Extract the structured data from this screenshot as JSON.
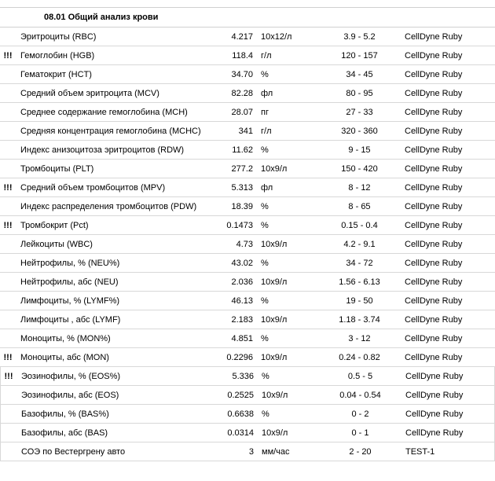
{
  "section": {
    "title": "08.01 Общий анализ крови"
  },
  "colors": {
    "border": "#d8d8d8",
    "text": "#000000",
    "bg": "#ffffff"
  },
  "typography": {
    "fontFamily": "Arial",
    "fontSize": 11
  },
  "rows": [
    {
      "flag": "",
      "name": "Эритроциты (RBC)",
      "value": "4.217",
      "unit": "10x12/л",
      "range": "3.9 - 5.2",
      "device": "CellDyne Ruby",
      "outer": false
    },
    {
      "flag": "!!!",
      "name": "Гемоглобин (HGB)",
      "value": "118.4",
      "unit": "г/л",
      "range": "120 - 157",
      "device": "CellDyne Ruby",
      "outer": false
    },
    {
      "flag": "",
      "name": "Гематокрит (HCT)",
      "value": "34.70",
      "unit": "%",
      "range": "34 - 45",
      "device": "CellDyne Ruby",
      "outer": false
    },
    {
      "flag": "",
      "name": "Средний объем эритроцита (MCV)",
      "value": "82.28",
      "unit": "фл",
      "range": "80 - 95",
      "device": "CellDyne Ruby",
      "outer": false
    },
    {
      "flag": "",
      "name": "Среднее содержание гемоглобина (MCH)",
      "value": "28.07",
      "unit": "пг",
      "range": "27 - 33",
      "device": "CellDyne Ruby",
      "outer": false
    },
    {
      "flag": "",
      "name": "Средняя концентрация гемоглобина (MCHC)",
      "value": "341",
      "unit": "г/л",
      "range": "320 - 360",
      "device": "CellDyne Ruby",
      "outer": false
    },
    {
      "flag": "",
      "name": "Индекс анизоцитоза эритроцитов (RDW)",
      "value": "11.62",
      "unit": "%",
      "range": "9 - 15",
      "device": "CellDyne Ruby",
      "outer": false
    },
    {
      "flag": "",
      "name": "Тромбоциты (PLT)",
      "value": "277.2",
      "unit": "10x9/л",
      "range": "150 - 420",
      "device": "CellDyne Ruby",
      "outer": false
    },
    {
      "flag": "!!!",
      "name": "Средний объем тромбоцитов (MPV)",
      "value": "5.313",
      "unit": "фл",
      "range": "8 - 12",
      "device": "CellDyne Ruby",
      "outer": false
    },
    {
      "flag": "",
      "name": "Индекс распределения тромбоцитов (PDW)",
      "value": "18.39",
      "unit": "%",
      "range": "8 - 65",
      "device": "CellDyne Ruby",
      "outer": false
    },
    {
      "flag": "!!!",
      "name": "Тромбокрит (Pct)",
      "value": "0.1473",
      "unit": "%",
      "range": "0.15 - 0.4",
      "device": "CellDyne Ruby",
      "outer": false
    },
    {
      "flag": "",
      "name": "Лейкоциты (WBC)",
      "value": "4.73",
      "unit": "10x9/л",
      "range": "4.2 - 9.1",
      "device": "CellDyne Ruby",
      "outer": false
    },
    {
      "flag": "",
      "name": "Нейтрофилы, % (NEU%)",
      "value": "43.02",
      "unit": "%",
      "range": "34 - 72",
      "device": "CellDyne Ruby",
      "outer": false
    },
    {
      "flag": "",
      "name": "Нейтрофилы, абс (NEU)",
      "value": "2.036",
      "unit": "10x9/л",
      "range": "1.56 - 6.13",
      "device": "CellDyne Ruby",
      "outer": false
    },
    {
      "flag": "",
      "name": "Лимфоциты, % (LYMF%)",
      "value": "46.13",
      "unit": "%",
      "range": "19 - 50",
      "device": "CellDyne Ruby",
      "outer": false
    },
    {
      "flag": "",
      "name": "Лимфоциты , абс (LYMF)",
      "value": "2.183",
      "unit": "10x9/л",
      "range": "1.18 - 3.74",
      "device": "CellDyne Ruby",
      "outer": false
    },
    {
      "flag": "",
      "name": "Моноциты, % (MON%)",
      "value": "4.851",
      "unit": "%",
      "range": "3 - 12",
      "device": "CellDyne Ruby",
      "outer": false
    },
    {
      "flag": "!!!",
      "name": "Моноциты, абс (MON)",
      "value": "0.2296",
      "unit": "10x9/л",
      "range": "0.24 - 0.82",
      "device": "CellDyne Ruby",
      "outer": false
    },
    {
      "flag": "!!!",
      "name": "Эозинофилы, % (EOS%)",
      "value": "5.336",
      "unit": "%",
      "range": "0.5 - 5",
      "device": "CellDyne Ruby",
      "outer": true
    },
    {
      "flag": "",
      "name": "Эозинофилы, абс (EOS)",
      "value": "0.2525",
      "unit": "10x9/л",
      "range": "0.04 - 0.54",
      "device": "CellDyne Ruby",
      "outer": true
    },
    {
      "flag": "",
      "name": "Базофилы, % (BAS%)",
      "value": "0.6638",
      "unit": "%",
      "range": "0 - 2",
      "device": "CellDyne Ruby",
      "outer": true
    },
    {
      "flag": "",
      "name": "Базофилы, абс (BAS)",
      "value": "0.0314",
      "unit": "10x9/л",
      "range": "0 - 1",
      "device": "CellDyne Ruby",
      "outer": true
    },
    {
      "flag": "",
      "name": "СОЭ по Вестергрену авто",
      "value": "3",
      "unit": "мм/час",
      "range": "2 - 20",
      "device": "TEST-1",
      "outer": true
    }
  ]
}
